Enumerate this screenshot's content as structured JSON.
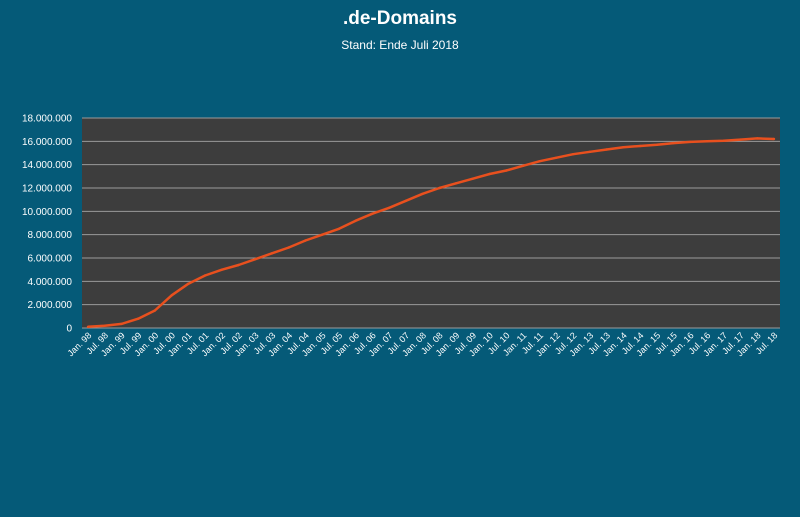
{
  "chart_data": {
    "type": "line",
    "title": ".de-Domains",
    "subtitle": "Stand: Ende Juli 2018",
    "xlabel": "",
    "ylabel": "",
    "ylim": [
      0,
      18000000
    ],
    "yticks": [
      0,
      2000000,
      4000000,
      6000000,
      8000000,
      10000000,
      12000000,
      14000000,
      16000000,
      18000000
    ],
    "ytick_labels": [
      "0",
      "2.000.000",
      "4.000.000",
      "6.000.000",
      "8.000.000",
      "10.000.000",
      "12.000.000",
      "14.000.000",
      "16.000.000",
      "18.000.000"
    ],
    "xtick_labels": [
      "Jan. 98",
      "Jul. 98",
      "Jan. 99",
      "Jul. 99",
      "Jan. 00",
      "Jul. 00",
      "Jan. 01",
      "Jul. 01",
      "Jan. 02",
      "Jul. 02",
      "Jan. 03",
      "Jul. 03",
      "Jan. 04",
      "Jul. 04",
      "Jan. 05",
      "Jul. 05",
      "Jan. 06",
      "Jul. 06",
      "Jan. 07",
      "Jul. 07",
      "Jan. 08",
      "Jul. 08",
      "Jan. 09",
      "Jul. 09",
      "Jan. 10",
      "Jul. 10",
      "Jan. 11",
      "Jul. 11",
      "Jan. 12",
      "Jul. 12",
      "Jan. 13",
      "Jul. 13",
      "Jan. 14",
      "Jul. 14",
      "Jan. 15",
      "Jul. 15",
      "Jan. 16",
      "Jul. 16",
      "Jan. 17",
      "Jul. 17",
      "Jan. 18",
      "Jul. 18"
    ],
    "grid": true,
    "legend": "none",
    "plot_background": "#3d3d3d",
    "page_background": "#055a78",
    "series": [
      {
        "color": "#e8501e",
        "x": [
          "Jan. 98",
          "Jul. 98",
          "Jan. 99",
          "Jul. 99",
          "Jan. 00",
          "Jul. 00",
          "Jan. 01",
          "Jul. 01",
          "Jan. 02",
          "Jul. 02",
          "Jan. 03",
          "Jul. 03",
          "Jan. 04",
          "Jul. 04",
          "Jan. 05",
          "Jul. 05",
          "Jan. 06",
          "Jul. 06",
          "Jan. 07",
          "Jul. 07",
          "Jan. 08",
          "Jul. 08",
          "Jan. 09",
          "Jul. 09",
          "Jan. 10",
          "Jul. 10",
          "Jan. 11",
          "Jul. 11",
          "Jan. 12",
          "Jul. 12",
          "Jan. 13",
          "Jul. 13",
          "Jan. 14",
          "Jul. 14",
          "Jan. 15",
          "Jul. 15",
          "Jan. 16",
          "Jul. 16",
          "Jan. 17",
          "Jul. 17",
          "Jan. 18",
          "Jul. 18"
        ],
        "values": [
          100000,
          200000,
          350000,
          800000,
          1500000,
          2800000,
          3800000,
          4500000,
          5000000,
          5400000,
          5900000,
          6400000,
          6900000,
          7500000,
          8000000,
          8500000,
          9200000,
          9800000,
          10300000,
          10900000,
          11500000,
          12000000,
          12400000,
          12800000,
          13200000,
          13500000,
          13900000,
          14300000,
          14600000,
          14900000,
          15100000,
          15300000,
          15500000,
          15600000,
          15700000,
          15850000,
          15950000,
          16000000,
          16050000,
          16150000,
          16250000,
          16200000
        ]
      }
    ]
  }
}
